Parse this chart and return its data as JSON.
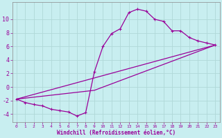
{
  "title": "",
  "xlabel": "Windchill (Refroidissement éolien,°C)",
  "background_color": "#c8eef0",
  "line_color": "#990099",
  "grid_color": "#b0d8d8",
  "xlim": [
    -0.5,
    23.5
  ],
  "ylim": [
    -5.2,
    12.5
  ],
  "xticks": [
    0,
    1,
    2,
    3,
    4,
    5,
    6,
    7,
    8,
    9,
    10,
    11,
    12,
    13,
    14,
    15,
    16,
    17,
    18,
    19,
    20,
    21,
    22,
    23
  ],
  "yticks": [
    -4,
    -2,
    0,
    2,
    4,
    6,
    8,
    10
  ],
  "curves": [
    {
      "x": [
        0,
        1,
        2,
        3,
        4,
        5,
        6,
        7,
        8,
        9,
        10,
        11,
        12,
        13,
        14,
        15,
        16,
        17,
        18,
        19,
        20,
        21,
        22,
        23
      ],
      "y": [
        -1.8,
        -2.3,
        -2.6,
        -2.8,
        -3.3,
        -3.5,
        -3.7,
        -4.3,
        -3.8,
        2.2,
        6.0,
        7.9,
        8.6,
        11.0,
        11.5,
        11.2,
        10.0,
        9.7,
        8.3,
        8.3,
        7.3,
        6.8,
        6.5,
        6.2
      ],
      "has_markers": true
    },
    {
      "x": [
        0,
        23
      ],
      "y": [
        -1.8,
        6.2
      ],
      "has_markers": false
    },
    {
      "x": [
        0,
        9,
        23
      ],
      "y": [
        -1.8,
        -0.5,
        6.2
      ],
      "has_markers": false
    }
  ],
  "markersize": 3,
  "linewidth": 0.9,
  "xlabel_fontsize": 5.5,
  "tick_fontsize_x": 4.5,
  "tick_fontsize_y": 6.0
}
